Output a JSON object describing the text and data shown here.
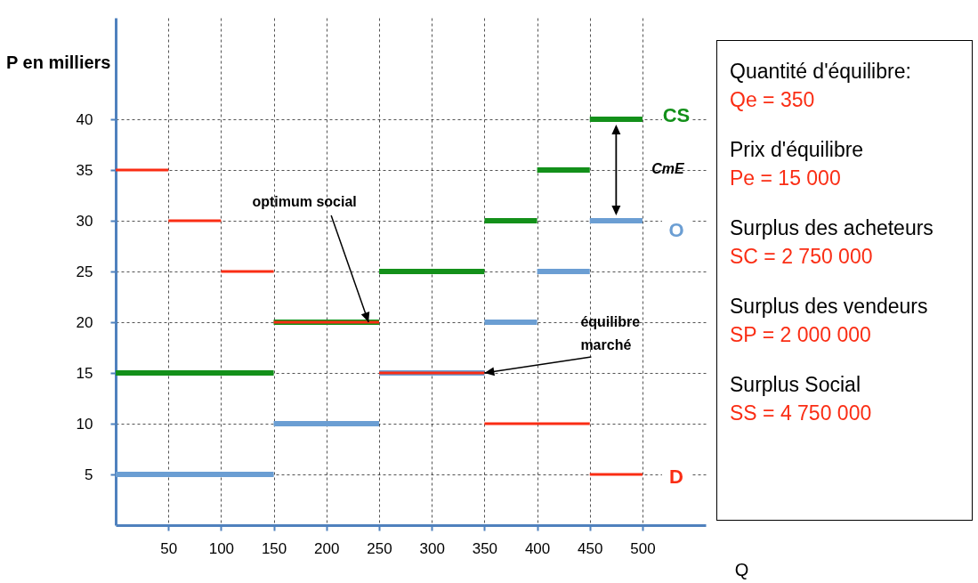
{
  "chart_data": {
    "type": "line",
    "xlabel": "Q",
    "ylabel": "P en milliers",
    "xlim": [
      0,
      560
    ],
    "ylim": [
      0,
      50
    ],
    "xticks": [
      50,
      100,
      150,
      200,
      250,
      300,
      350,
      400,
      450,
      500
    ],
    "yticks": [
      5,
      10,
      15,
      20,
      25,
      30,
      35,
      40
    ],
    "grid": true,
    "marker": "none",
    "line_style": "solid",
    "series": [
      {
        "color": "#13901a",
        "x": [
          0,
          150
        ],
        "values": [
          15,
          15
        ]
      },
      {
        "color": "#13901a",
        "x": [
          150,
          250
        ],
        "values": [
          20,
          20
        ]
      },
      {
        "color": "#13901a",
        "x": [
          250,
          350
        ],
        "values": [
          25,
          25
        ]
      },
      {
        "color": "#13901a",
        "x": [
          350,
          400
        ],
        "values": [
          30,
          30
        ]
      },
      {
        "color": "#13901a",
        "x": [
          400,
          450
        ],
        "values": [
          35,
          35
        ]
      },
      {
        "name": "CS",
        "color": "#13901a",
        "x": [
          450,
          500
        ],
        "values": [
          40,
          40
        ]
      },
      {
        "color": "#6b9ed3",
        "x": [
          0,
          150
        ],
        "values": [
          5,
          5
        ]
      },
      {
        "color": "#6b9ed3",
        "x": [
          150,
          250
        ],
        "values": [
          10,
          10
        ]
      },
      {
        "color": "#6b9ed3",
        "x": [
          250,
          350
        ],
        "values": [
          15,
          15
        ]
      },
      {
        "color": "#6b9ed3",
        "x": [
          350,
          400
        ],
        "values": [
          20,
          20
        ]
      },
      {
        "color": "#6b9ed3",
        "x": [
          400,
          450
        ],
        "values": [
          25,
          25
        ]
      },
      {
        "name": "O",
        "color": "#6b9ed3",
        "x": [
          450,
          500
        ],
        "values": [
          30,
          30
        ]
      },
      {
        "color": "#fa2d14",
        "x": [
          0,
          50
        ],
        "values": [
          35,
          35
        ]
      },
      {
        "color": "#fa2d14",
        "x": [
          50,
          100
        ],
        "values": [
          30,
          30
        ]
      },
      {
        "color": "#fa2d14",
        "x": [
          100,
          150
        ],
        "values": [
          25,
          25
        ]
      },
      {
        "color": "#fa2d14",
        "x": [
          150,
          250
        ],
        "values": [
          20,
          20
        ]
      },
      {
        "color": "#fa2d14",
        "x": [
          250,
          350
        ],
        "values": [
          15,
          15
        ]
      },
      {
        "color": "#fa2d14",
        "x": [
          350,
          450
        ],
        "values": [
          10,
          10
        ]
      },
      {
        "name": "D",
        "color": "#fa2d14",
        "x": [
          450,
          500
        ],
        "values": [
          5,
          5
        ]
      }
    ],
    "annotations": [
      {
        "text": "optimum social",
        "x": 240,
        "y": 20
      },
      {
        "text": "équilibre marché",
        "x": 350,
        "y": 15
      },
      "CmE",
      "Quantité d'équilibre:",
      "Qe = 350",
      "Prix d'équilibre",
      "Pe = 15 000",
      "Surplus des acheteurs",
      "SC = 2 750 000",
      "Surplus des vendeurs",
      "SP = 2 000 000",
      "Surplus Social",
      "SS = 4 750 000"
    ]
  }
}
